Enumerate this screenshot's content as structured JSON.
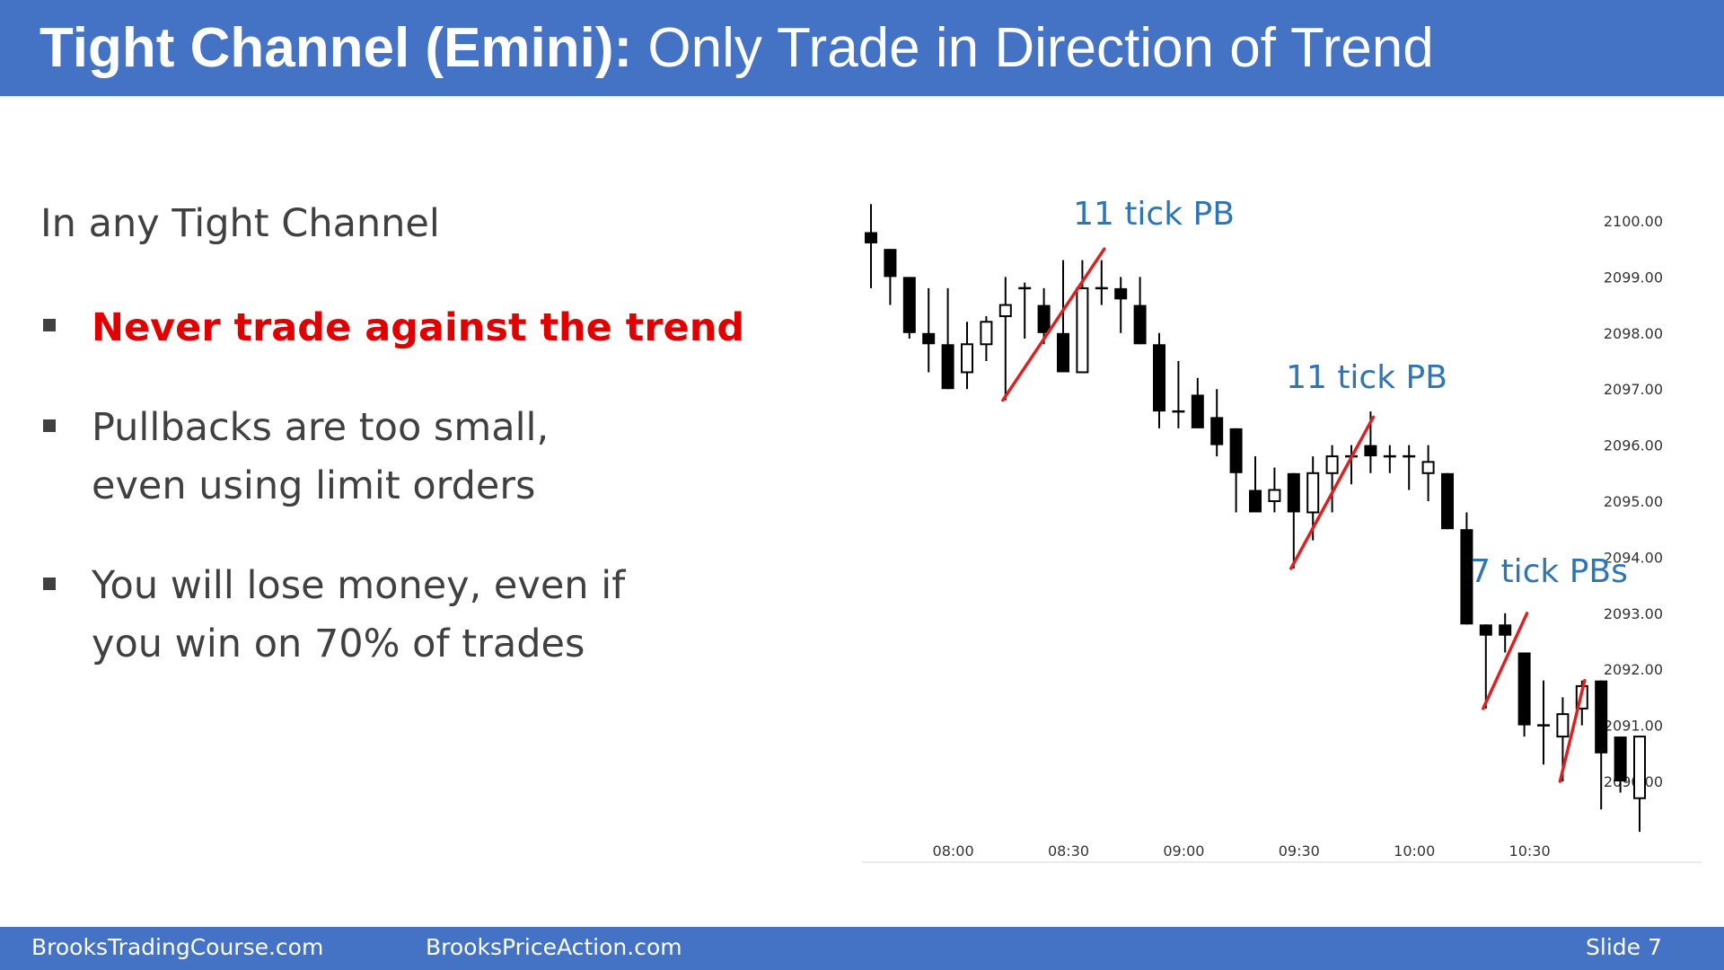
{
  "title": {
    "bold": "Tight Channel (Emini):",
    "rest": "Only Trade in Direction of Trend"
  },
  "intro": "In any Tight Channel",
  "bullets": [
    {
      "lines": [
        "Never trade against the trend"
      ],
      "highlight": true
    },
    {
      "lines": [
        "Pullbacks are too small,",
        "even using limit orders"
      ],
      "highlight": false
    },
    {
      "lines": [
        "You will lose money, even if",
        "you win on 70% of trades"
      ],
      "highlight": false
    }
  ],
  "chart_data": {
    "type": "candlestick",
    "y_ticks": [
      "2100.00",
      "2099.00",
      "2098.00",
      "2097.00",
      "2096.00",
      "2095.00",
      "2094.00",
      "2093.00",
      "2092.00",
      "2091.00",
      "2090.00"
    ],
    "y_tick_values": [
      2100,
      2099,
      2098,
      2097,
      2096,
      2095,
      2094,
      2093,
      2092,
      2091,
      2090
    ],
    "x_ticks": [
      "08:00",
      "08:30",
      "09:00",
      "09:30",
      "10:00",
      "10:30"
    ],
    "x_tick_index": [
      4,
      10,
      16,
      22,
      28,
      34
    ],
    "annotations": [
      "11 tick PB",
      "11 tick PB",
      "7 tick PBs"
    ],
    "annotation_colors": {
      "text": "#2e75b6",
      "line": "#e02020"
    },
    "candles": [
      {
        "o": 2099.8,
        "h": 2100.3,
        "l": 2098.8,
        "c": 2099.6
      },
      {
        "o": 2099.5,
        "h": 2099.5,
        "l": 2098.5,
        "c": 2099.0
      },
      {
        "o": 2099.0,
        "h": 2099.0,
        "l": 2097.9,
        "c": 2098.0
      },
      {
        "o": 2098.0,
        "h": 2098.8,
        "l": 2097.3,
        "c": 2097.8
      },
      {
        "o": 2097.8,
        "h": 2098.8,
        "l": 2097.0,
        "c": 2097.0
      },
      {
        "o": 2097.3,
        "h": 2098.2,
        "l": 2097.0,
        "c": 2097.8
      },
      {
        "o": 2097.8,
        "h": 2098.3,
        "l": 2097.5,
        "c": 2098.2
      },
      {
        "o": 2098.3,
        "h": 2099.0,
        "l": 2096.8,
        "c": 2098.5
      },
      {
        "o": 2098.8,
        "h": 2098.9,
        "l": 2097.9,
        "c": 2098.8
      },
      {
        "o": 2098.5,
        "h": 2098.8,
        "l": 2097.8,
        "c": 2098.0
      },
      {
        "o": 2098.0,
        "h": 2099.3,
        "l": 2097.3,
        "c": 2097.3
      },
      {
        "o": 2097.3,
        "h": 2099.3,
        "l": 2097.3,
        "c": 2098.8
      },
      {
        "o": 2098.8,
        "h": 2099.3,
        "l": 2098.5,
        "c": 2098.8
      },
      {
        "o": 2098.8,
        "h": 2099.0,
        "l": 2098.0,
        "c": 2098.6
      },
      {
        "o": 2098.5,
        "h": 2099.0,
        "l": 2097.8,
        "c": 2097.8
      },
      {
        "o": 2097.8,
        "h": 2098.0,
        "l": 2096.3,
        "c": 2096.6
      },
      {
        "o": 2096.6,
        "h": 2097.5,
        "l": 2096.3,
        "c": 2096.6
      },
      {
        "o": 2096.9,
        "h": 2097.2,
        "l": 2096.3,
        "c": 2096.3
      },
      {
        "o": 2096.5,
        "h": 2097.0,
        "l": 2095.8,
        "c": 2096.0
      },
      {
        "o": 2096.3,
        "h": 2096.3,
        "l": 2094.8,
        "c": 2095.5
      },
      {
        "o": 2095.2,
        "h": 2095.8,
        "l": 2094.8,
        "c": 2094.8
      },
      {
        "o": 2095.0,
        "h": 2095.6,
        "l": 2094.8,
        "c": 2095.2
      },
      {
        "o": 2095.5,
        "h": 2095.5,
        "l": 2093.8,
        "c": 2094.8
      },
      {
        "o": 2094.8,
        "h": 2095.8,
        "l": 2094.3,
        "c": 2095.5
      },
      {
        "o": 2095.5,
        "h": 2096.0,
        "l": 2094.8,
        "c": 2095.8
      },
      {
        "o": 2095.8,
        "h": 2096.0,
        "l": 2095.3,
        "c": 2095.8
      },
      {
        "o": 2096.0,
        "h": 2096.6,
        "l": 2095.5,
        "c": 2095.8
      },
      {
        "o": 2095.8,
        "h": 2096.0,
        "l": 2095.5,
        "c": 2095.8
      },
      {
        "o": 2095.8,
        "h": 2096.0,
        "l": 2095.2,
        "c": 2095.8
      },
      {
        "o": 2095.5,
        "h": 2096.0,
        "l": 2095.0,
        "c": 2095.7
      },
      {
        "o": 2095.5,
        "h": 2095.5,
        "l": 2094.5,
        "c": 2094.5
      },
      {
        "o": 2094.5,
        "h": 2094.8,
        "l": 2092.8,
        "c": 2092.8
      },
      {
        "o": 2092.8,
        "h": 2092.8,
        "l": 2091.3,
        "c": 2092.6
      },
      {
        "o": 2092.8,
        "h": 2093.0,
        "l": 2092.3,
        "c": 2092.6
      },
      {
        "o": 2092.3,
        "h": 2092.3,
        "l": 2090.8,
        "c": 2091.0
      },
      {
        "o": 2091.0,
        "h": 2091.8,
        "l": 2090.3,
        "c": 2091.0
      },
      {
        "o": 2090.8,
        "h": 2091.5,
        "l": 2090.0,
        "c": 2091.2
      },
      {
        "o": 2091.3,
        "h": 2091.8,
        "l": 2091.0,
        "c": 2091.7
      },
      {
        "o": 2091.8,
        "h": 2091.8,
        "l": 2089.5,
        "c": 2090.5
      },
      {
        "o": 2090.8,
        "h": 2090.8,
        "l": 2089.8,
        "c": 2090.0
      },
      {
        "o": 2089.7,
        "h": 2090.8,
        "l": 2089.1,
        "c": 2090.8
      }
    ],
    "pullback_lines": [
      {
        "from_index": 7,
        "from_price": 2096.8,
        "to_index": 12,
        "to_price": 2099.5
      },
      {
        "from_index": 22,
        "from_price": 2093.8,
        "to_index": 26,
        "to_price": 2096.5
      },
      {
        "from_index": 32,
        "from_price": 2091.3,
        "to_index": 34,
        "to_price": 2093.0
      },
      {
        "from_index": 36,
        "from_price": 2090.0,
        "to_index": 37,
        "to_price": 2091.8
      }
    ]
  },
  "footer": {
    "left": "BrooksTradingCourse.com",
    "center": "BrooksPriceAction.com",
    "right": "Slide  7"
  },
  "colors": {
    "header": "#4472c4",
    "text": "#404040",
    "highlight": "#e00000"
  }
}
